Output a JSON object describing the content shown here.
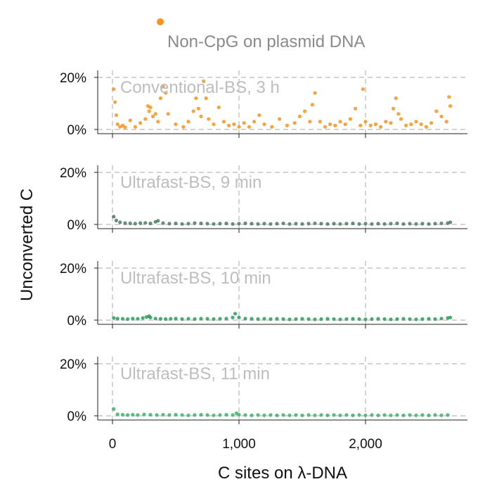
{
  "legend": {
    "label": "Non-CpG on plasmid DNA",
    "color": "#f7931e"
  },
  "axes": {
    "ylabel": "Unconverted C",
    "xlabel": "C sites on λ-DNA"
  },
  "chart_data": {
    "type": "scatter",
    "xlim": [
      -120,
      2780
    ],
    "ylim": [
      -2,
      23
    ],
    "x_ticks": [
      0,
      1000,
      2000
    ],
    "x_tick_labels": [
      "0",
      "1,000",
      "2,000"
    ],
    "y_ticks": [
      0,
      20
    ],
    "y_tick_labels": [
      "0%",
      "20%"
    ],
    "grid": true,
    "legend_position": "top",
    "panels": [
      {
        "title": "Conventional-BS, 3 h",
        "color": "#f7931e",
        "x": [
          10,
          20,
          30,
          40,
          60,
          80,
          100,
          140,
          180,
          220,
          260,
          280,
          290,
          300,
          320,
          340,
          360,
          380,
          400,
          420,
          440,
          500,
          560,
          600,
          640,
          660,
          680,
          700,
          720,
          740,
          760,
          800,
          840,
          880,
          920,
          960,
          1000,
          1040,
          1080,
          1120,
          1160,
          1200,
          1260,
          1320,
          1380,
          1440,
          1480,
          1520,
          1560,
          1580,
          1600,
          1640,
          1680,
          1720,
          1760,
          1800,
          1840,
          1880,
          1920,
          1960,
          1980,
          2000,
          2040,
          2080,
          2120,
          2160,
          2200,
          2220,
          2240,
          2260,
          2280,
          2320,
          2360,
          2400,
          2440,
          2480,
          2520,
          2560,
          2600,
          2640,
          2660,
          2670
        ],
        "y": [
          15.5,
          10.5,
          5.5,
          2.0,
          1.0,
          1.5,
          0.8,
          3.5,
          1.0,
          2.5,
          4.0,
          9.0,
          7.0,
          8.5,
          5.0,
          6.0,
          3.0,
          12.0,
          16.5,
          14.0,
          6.0,
          2.0,
          1.0,
          3.0,
          7.0,
          12.0,
          8.0,
          5.0,
          18.5,
          12.0,
          4.0,
          2.0,
          8.5,
          3.0,
          1.5,
          2.0,
          1.0,
          2.5,
          1.0,
          3.0,
          5.5,
          2.0,
          1.0,
          4.0,
          1.5,
          2.5,
          5.0,
          7.0,
          3.0,
          9.5,
          14.0,
          3.0,
          1.0,
          2.0,
          1.5,
          3.0,
          2.0,
          4.0,
          8.0,
          1.5,
          15.5,
          3.0,
          1.5,
          2.0,
          1.0,
          3.0,
          2.5,
          8.0,
          12.0,
          6.0,
          4.0,
          1.5,
          2.0,
          3.0,
          2.0,
          1.0,
          2.5,
          7.0,
          5.0,
          3.0,
          12.5,
          9.0
        ]
      },
      {
        "title": "Ultrafast-BS, 9 min",
        "color": "#4c7a63",
        "x": [
          10,
          30,
          60,
          100,
          140,
          180,
          220,
          260,
          300,
          340,
          360,
          400,
          450,
          500,
          550,
          600,
          650,
          700,
          750,
          800,
          850,
          900,
          950,
          1000,
          1050,
          1100,
          1150,
          1200,
          1250,
          1300,
          1350,
          1400,
          1450,
          1500,
          1550,
          1600,
          1650,
          1700,
          1750,
          1800,
          1850,
          1900,
          1950,
          2000,
          2050,
          2100,
          2150,
          2200,
          2250,
          2300,
          2350,
          2400,
          2450,
          2500,
          2550,
          2600,
          2650,
          2670
        ],
        "y": [
          3.0,
          1.5,
          0.8,
          0.5,
          0.4,
          0.3,
          0.5,
          0.6,
          0.4,
          1.0,
          1.4,
          0.5,
          0.3,
          0.4,
          0.2,
          0.3,
          0.5,
          0.4,
          0.3,
          0.2,
          0.3,
          0.4,
          0.2,
          0.3,
          0.4,
          0.3,
          0.2,
          0.3,
          0.2,
          0.3,
          0.4,
          0.2,
          0.3,
          0.2,
          0.3,
          0.4,
          0.3,
          0.2,
          0.3,
          0.2,
          0.3,
          0.4,
          0.2,
          0.3,
          0.2,
          0.3,
          0.2,
          0.3,
          0.4,
          0.2,
          0.3,
          0.2,
          0.3,
          0.2,
          0.3,
          0.4,
          0.5,
          0.8
        ]
      },
      {
        "title": "Ultrafast-BS, 10 min",
        "color": "#2e9a5a",
        "x": [
          10,
          40,
          80,
          120,
          160,
          200,
          240,
          270,
          290,
          300,
          340,
          380,
          420,
          460,
          500,
          550,
          600,
          650,
          700,
          750,
          800,
          850,
          900,
          950,
          970,
          1000,
          1050,
          1100,
          1150,
          1200,
          1250,
          1300,
          1350,
          1400,
          1450,
          1500,
          1550,
          1600,
          1650,
          1700,
          1750,
          1800,
          1850,
          1900,
          1950,
          2000,
          2050,
          2100,
          2150,
          2200,
          2250,
          2300,
          2350,
          2400,
          2450,
          2500,
          2550,
          2600,
          2650,
          2670
        ],
        "y": [
          0.8,
          0.6,
          0.5,
          0.4,
          0.6,
          0.5,
          0.8,
          1.2,
          1.5,
          1.0,
          0.6,
          0.5,
          0.4,
          0.5,
          0.6,
          0.4,
          0.5,
          0.4,
          0.6,
          0.5,
          0.4,
          0.5,
          0.6,
          1.0,
          2.5,
          1.0,
          0.6,
          0.5,
          0.4,
          0.5,
          0.4,
          0.5,
          0.4,
          0.3,
          0.4,
          0.5,
          0.4,
          0.3,
          0.4,
          0.5,
          0.4,
          0.3,
          0.4,
          0.5,
          0.4,
          0.3,
          0.4,
          0.5,
          0.4,
          0.3,
          0.4,
          0.5,
          0.4,
          0.3,
          0.4,
          0.5,
          0.4,
          0.6,
          0.8,
          1.0
        ]
      },
      {
        "title": "Ultrafast-BS, 11 min",
        "color": "#3cb06a",
        "x": [
          10,
          40,
          80,
          120,
          160,
          200,
          250,
          300,
          350,
          400,
          450,
          500,
          550,
          600,
          650,
          700,
          750,
          800,
          850,
          900,
          950,
          980,
          1000,
          1050,
          1100,
          1150,
          1200,
          1250,
          1300,
          1350,
          1400,
          1450,
          1500,
          1550,
          1600,
          1650,
          1700,
          1750,
          1800,
          1850,
          1900,
          1950,
          2000,
          2050,
          2100,
          2150,
          2200,
          2250,
          2300,
          2350,
          2400,
          2450,
          2500,
          2550,
          2600,
          2650
        ],
        "y": [
          2.6,
          0.6,
          0.4,
          0.3,
          0.4,
          0.3,
          0.5,
          0.4,
          0.3,
          0.4,
          0.3,
          0.4,
          0.3,
          0.2,
          0.3,
          0.4,
          0.3,
          0.2,
          0.3,
          0.4,
          0.3,
          1.0,
          0.4,
          0.3,
          0.2,
          0.3,
          0.2,
          0.3,
          0.2,
          0.3,
          0.2,
          0.3,
          0.2,
          0.3,
          0.2,
          0.3,
          0.2,
          0.3,
          0.2,
          0.3,
          0.2,
          0.3,
          0.2,
          0.3,
          0.2,
          0.3,
          0.2,
          0.3,
          0.2,
          0.3,
          0.2,
          0.3,
          0.2,
          0.3,
          0.2,
          0.3
        ]
      }
    ]
  }
}
